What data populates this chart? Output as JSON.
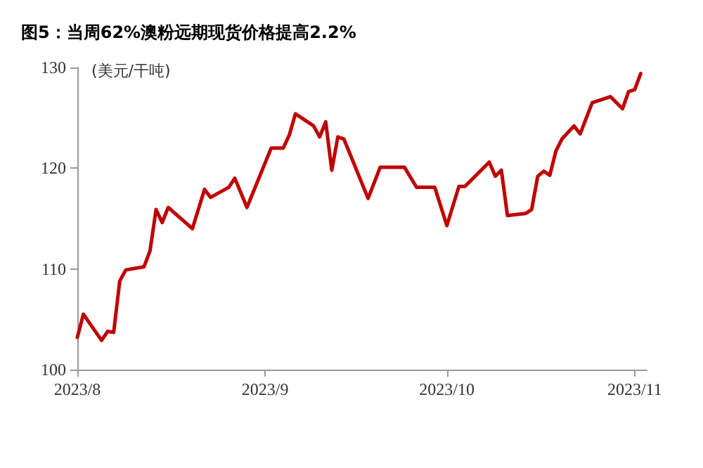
{
  "chart_data": {
    "type": "line",
    "title": "图5：当周62%澳粉远期现货价格提高2.2%",
    "ylabel": "(美元/干吨)",
    "x": [
      "2023-08-01",
      "2023-08-02",
      "2023-08-05",
      "2023-08-06",
      "2023-08-07",
      "2023-08-08",
      "2023-08-09",
      "2023-08-12",
      "2023-08-13",
      "2023-08-14",
      "2023-08-15",
      "2023-08-16",
      "2023-08-20",
      "2023-08-22",
      "2023-08-23",
      "2023-08-26",
      "2023-08-27",
      "2023-08-29",
      "2023-09-02",
      "2023-09-04",
      "2023-09-05",
      "2023-09-06",
      "2023-09-09",
      "2023-09-10",
      "2023-09-11",
      "2023-09-12",
      "2023-09-13",
      "2023-09-14",
      "2023-09-18",
      "2023-09-20",
      "2023-09-24",
      "2023-09-26",
      "2023-09-29",
      "2023-10-01",
      "2023-10-03",
      "2023-10-04",
      "2023-10-08",
      "2023-10-09",
      "2023-10-10",
      "2023-10-11",
      "2023-10-14",
      "2023-10-15",
      "2023-10-16",
      "2023-10-17",
      "2023-10-18",
      "2023-10-19",
      "2023-10-20",
      "2023-10-22",
      "2023-10-23",
      "2023-10-25",
      "2023-10-28",
      "2023-10-30",
      "2023-10-31",
      "2023-11-01",
      "2023-11-02"
    ],
    "series": [
      {
        "color": "#c00000",
        "values": [
          103.2,
          105.5,
          102.9,
          103.8,
          103.7,
          108.8,
          109.9,
          110.2,
          111.8,
          115.9,
          114.6,
          116.1,
          114.0,
          117.9,
          117.1,
          118.1,
          119.0,
          116.1,
          122.0,
          122.0,
          123.3,
          125.4,
          124.2,
          123.1,
          124.6,
          119.8,
          123.1,
          122.9,
          117.0,
          120.1,
          120.1,
          118.1,
          118.1,
          114.3,
          118.2,
          118.2,
          120.6,
          119.2,
          119.8,
          115.3,
          115.5,
          115.9,
          119.2,
          119.7,
          119.3,
          121.7,
          122.9,
          124.2,
          123.4,
          126.5,
          127.1,
          125.9,
          127.6,
          127.8,
          129.4
        ]
      }
    ],
    "xlim": [
      "2023-08-01",
      "2023-11-03"
    ],
    "xticks": [
      {
        "value": "2023-08-01",
        "label": "2023/8"
      },
      {
        "value": "2023-09-01",
        "label": "2023/9"
      },
      {
        "value": "2023-10-01",
        "label": "2023/10"
      },
      {
        "value": "2023-11-01",
        "label": "2023/11"
      }
    ],
    "ylim": [
      100,
      130
    ],
    "yticks": [
      100,
      110,
      120,
      130
    ],
    "grid": false,
    "marker": "none",
    "line_style": "solid"
  }
}
